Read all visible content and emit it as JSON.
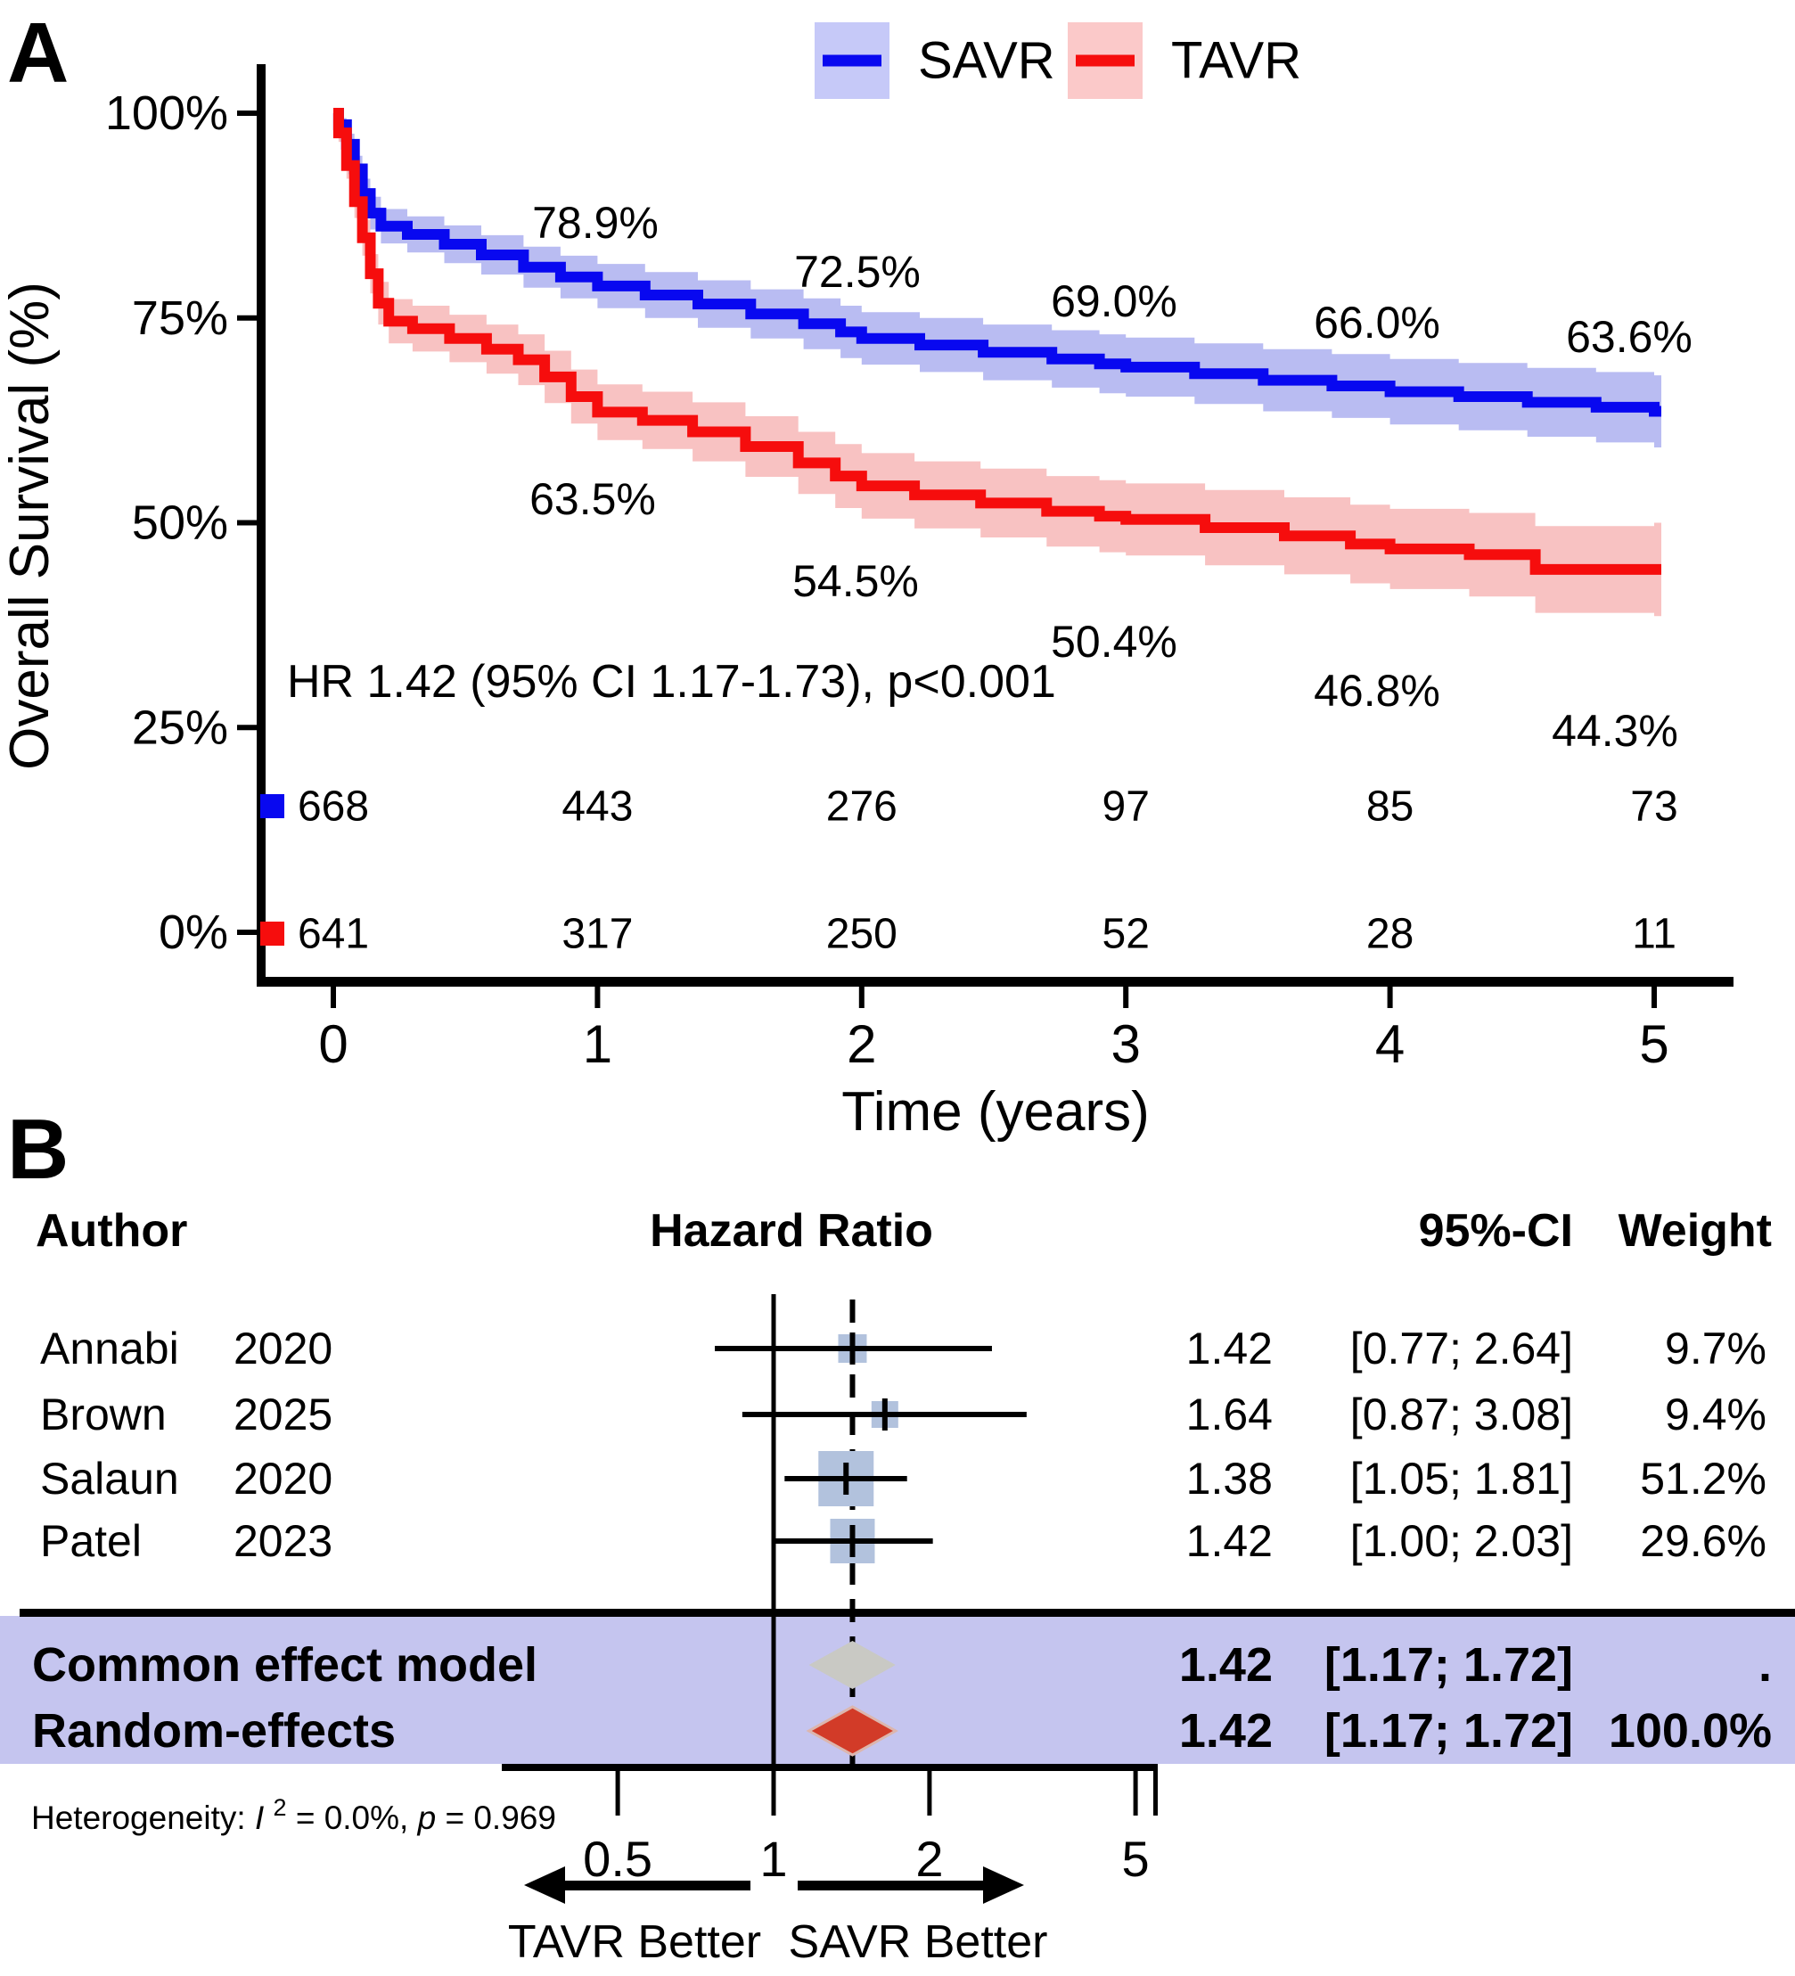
{
  "figure": {
    "panel_a_label": "A",
    "panel_b_label": "B"
  },
  "chart_data": [
    {
      "type": "line",
      "subtype": "kaplan_meier_step_with_ci_bands",
      "title": "",
      "xlabel": "Time (years)",
      "ylabel": "Overall Survival (%)",
      "xlim": [
        0,
        5
      ],
      "ylim": [
        0,
        100
      ],
      "grid": false,
      "legend_position": "top",
      "x_ticks": [
        "0",
        "1",
        "2",
        "3",
        "4",
        "5"
      ],
      "x_tick_values": [
        0,
        1,
        2,
        3,
        4,
        5
      ],
      "y_ticks": [
        "100%",
        "75%",
        "50%",
        "25%",
        "0%"
      ],
      "y_tick_values": [
        100,
        75,
        50,
        25,
        0
      ],
      "hr_annotation": "HR 1.42 (95% CI 1.17-1.73), p<0.001",
      "series": [
        {
          "name": "SAVR",
          "line_color": "#0808f0",
          "band_color": "#b9bcf2",
          "legend_box_color": "#c6c9f8",
          "year_labels": [
            {
              "year": 1,
              "text": "78.9%",
              "px": [
                668,
                250
              ]
            },
            {
              "year": 2,
              "text": "72.5%",
              "px": [
                962,
                305
              ]
            },
            {
              "year": 3,
              "text": "69.0%",
              "px": [
                1250,
                338
              ]
            },
            {
              "year": 4,
              "text": "66.0%",
              "px": [
                1545,
                362
              ]
            },
            {
              "year": 5,
              "text": "63.6%",
              "px": [
                1828,
                378
              ]
            }
          ],
          "points": [
            [
              0,
              100,
              100,
              100
            ],
            [
              0.02,
              98.6,
              97.8,
              99.4
            ],
            [
              0.05,
              96.2,
              94.9,
              97.5
            ],
            [
              0.08,
              93.2,
              91.6,
              94.8
            ],
            [
              0.11,
              90.2,
              88.4,
              92.0
            ],
            [
              0.14,
              87.8,
              85.8,
              89.8
            ],
            [
              0.18,
              86.2,
              84.1,
              88.3
            ],
            [
              0.28,
              85.2,
              83.0,
              87.4
            ],
            [
              0.42,
              84.0,
              81.7,
              86.3
            ],
            [
              0.56,
              82.7,
              80.3,
              85.1
            ],
            [
              0.72,
              81.2,
              78.7,
              83.7
            ],
            [
              0.86,
              80.0,
              77.4,
              82.6
            ],
            [
              1.0,
              78.9,
              76.2,
              81.6
            ],
            [
              1.18,
              77.8,
              75.0,
              80.6
            ],
            [
              1.38,
              76.7,
              73.8,
              79.6
            ],
            [
              1.58,
              75.5,
              72.5,
              78.5
            ],
            [
              1.78,
              74.3,
              71.2,
              77.4
            ],
            [
              1.92,
              73.3,
              70.1,
              76.5
            ],
            [
              2.0,
              72.5,
              69.3,
              75.7
            ],
            [
              2.22,
              71.7,
              68.4,
              75.0
            ],
            [
              2.46,
              70.8,
              67.4,
              74.2
            ],
            [
              2.72,
              70.0,
              66.5,
              73.5
            ],
            [
              2.9,
              69.4,
              65.8,
              73.0
            ],
            [
              3.0,
              69.0,
              65.4,
              72.6
            ],
            [
              3.26,
              68.2,
              64.5,
              71.9
            ],
            [
              3.52,
              67.4,
              63.6,
              71.2
            ],
            [
              3.78,
              66.7,
              62.8,
              70.6
            ],
            [
              4.0,
              66.0,
              62.0,
              70.0
            ],
            [
              4.26,
              65.4,
              61.3,
              69.5
            ],
            [
              4.52,
              64.7,
              60.5,
              68.9
            ],
            [
              4.78,
              64.1,
              59.8,
              68.4
            ],
            [
              5.0,
              63.6,
              59.2,
              68.0
            ]
          ]
        },
        {
          "name": "TAVR",
          "line_color": "#f60d0d",
          "band_color": "#f8c2c2",
          "legend_box_color": "#fbc9c9",
          "year_labels": [
            {
              "year": 1,
              "text": "63.5%",
              "px": [
                665,
                560
              ]
            },
            {
              "year": 2,
              "text": "54.5%",
              "px": [
                960,
                652
              ]
            },
            {
              "year": 3,
              "text": "50.4%",
              "px": [
                1250,
                720
              ]
            },
            {
              "year": 4,
              "text": "46.8%",
              "px": [
                1545,
                775
              ]
            },
            {
              "year": 5,
              "text": "44.3%",
              "px": [
                1812,
                820
              ]
            }
          ],
          "points": [
            [
              0,
              100,
              100,
              100
            ],
            [
              0.02,
              97.6,
              96.5,
              98.7
            ],
            [
              0.05,
              93.6,
              92.0,
              95.2
            ],
            [
              0.08,
              89.2,
              87.2,
              91.2
            ],
            [
              0.11,
              84.8,
              82.6,
              87.0
            ],
            [
              0.14,
              80.4,
              78.0,
              82.8
            ],
            [
              0.17,
              76.8,
              74.2,
              79.4
            ],
            [
              0.21,
              74.6,
              71.9,
              77.3
            ],
            [
              0.3,
              73.7,
              70.9,
              76.5
            ],
            [
              0.44,
              72.5,
              69.6,
              75.4
            ],
            [
              0.58,
              71.2,
              68.2,
              74.2
            ],
            [
              0.7,
              69.9,
              66.8,
              73.0
            ],
            [
              0.8,
              67.8,
              64.6,
              71.0
            ],
            [
              0.9,
              65.4,
              62.1,
              68.7
            ],
            [
              1.0,
              63.5,
              60.1,
              66.9
            ],
            [
              1.17,
              62.5,
              59.0,
              66.0
            ],
            [
              1.36,
              61.1,
              57.5,
              64.7
            ],
            [
              1.56,
              59.3,
              55.6,
              63.0
            ],
            [
              1.76,
              57.3,
              53.5,
              61.1
            ],
            [
              1.9,
              55.7,
              51.8,
              59.6
            ],
            [
              2.0,
              54.5,
              50.5,
              58.5
            ],
            [
              2.2,
              53.4,
              49.3,
              57.5
            ],
            [
              2.45,
              52.4,
              48.2,
              56.6
            ],
            [
              2.7,
              51.4,
              47.1,
              55.7
            ],
            [
              2.9,
              50.8,
              46.4,
              55.2
            ],
            [
              3.0,
              50.4,
              46.0,
              54.8
            ],
            [
              3.3,
              49.4,
              44.8,
              54.0
            ],
            [
              3.6,
              48.4,
              43.7,
              53.1
            ],
            [
              3.85,
              47.4,
              42.6,
              52.2
            ],
            [
              4.0,
              46.8,
              41.9,
              51.7
            ],
            [
              4.3,
              46.1,
              41.0,
              51.2
            ],
            [
              4.55,
              44.3,
              39.0,
              49.6
            ],
            [
              5.0,
              44.3,
              38.6,
              50.0
            ]
          ]
        }
      ],
      "number_at_risk": {
        "times": [
          "0",
          "1",
          "2",
          "3",
          "4",
          "5"
        ],
        "rows": [
          {
            "name": "SAVR",
            "color": "#0808f0",
            "counts": [
              "668",
              "443",
              "276",
              "97",
              "85",
              "73"
            ]
          },
          {
            "name": "TAVR",
            "color": "#f60d0d",
            "counts": [
              "641",
              "317",
              "250",
              "52",
              "28",
              "11"
            ]
          }
        ]
      }
    },
    {
      "type": "forest",
      "scale": "log",
      "columns": {
        "author": "Author",
        "hazard_ratio": "Hazard Ratio",
        "ci": "95%-CI",
        "weight": "Weight"
      },
      "axis_ticks": [
        "0.5",
        "1",
        "2",
        "5"
      ],
      "axis_tick_values": [
        0.5,
        1,
        2,
        5
      ],
      "ref_line": 1,
      "effect_line": 1.42,
      "square_color": "#b2c2dd",
      "summary_band_color": "#c5c5ef",
      "studies": [
        {
          "author": "Annabi",
          "year": "2020",
          "hr": 1.42,
          "ci_low": 0.77,
          "ci_high": 2.64,
          "hr_text": "1.42",
          "ci_text": "[0.77; 2.64]",
          "weight_text": "9.7%",
          "weight": 9.7
        },
        {
          "author": "Brown",
          "year": "2025",
          "hr": 1.64,
          "ci_low": 0.87,
          "ci_high": 3.08,
          "hr_text": "1.64",
          "ci_text": "[0.87; 3.08]",
          "weight_text": "9.4%",
          "weight": 9.4
        },
        {
          "author": "Salaun",
          "year": "2020",
          "hr": 1.38,
          "ci_low": 1.05,
          "ci_high": 1.81,
          "hr_text": "1.38",
          "ci_text": "[1.05; 1.81]",
          "weight_text": "51.2%",
          "weight": 51.2
        },
        {
          "author": "Patel",
          "year": "2023",
          "hr": 1.42,
          "ci_low": 1.0,
          "ci_high": 2.03,
          "hr_text": "1.42",
          "ci_text": "[1.00; 2.03]",
          "weight_text": "29.6%",
          "weight": 29.6
        }
      ],
      "summaries": [
        {
          "label": "Common effect model",
          "hr": 1.42,
          "ci_low": 1.17,
          "ci_high": 1.72,
          "hr_text": "1.42",
          "ci_text": "[1.17; 1.72]",
          "weight_text": ".",
          "fill": "#c9c9c4",
          "stroke": "none"
        },
        {
          "label": "Random-effects",
          "hr": 1.42,
          "ci_low": 1.17,
          "ci_high": 1.72,
          "hr_text": "1.42",
          "ci_text": "[1.17; 1.72]",
          "weight_text": "100.0%",
          "fill": "#d23b28",
          "stroke": "#dcb6ae"
        }
      ],
      "heterogeneity": {
        "prefix": "Heterogeneity: ",
        "i_symbol": "I",
        "i_sup": "2",
        "mid": " = 0.0%, ",
        "p_symbol": "p",
        "tail": " = 0.969"
      },
      "direction_labels": {
        "left": "TAVR Better",
        "right": "SAVR Better"
      }
    }
  ]
}
